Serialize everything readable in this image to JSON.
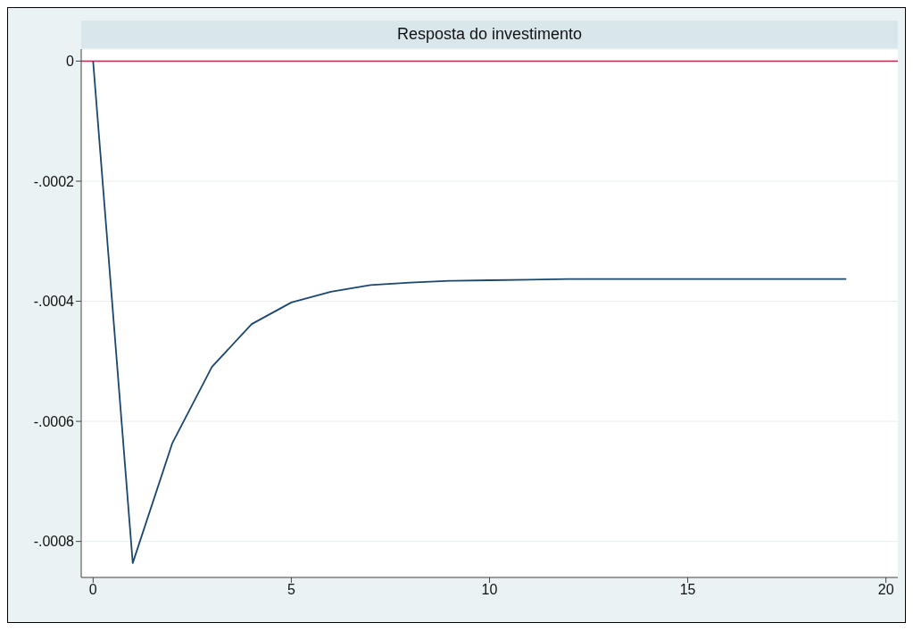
{
  "chart_data": {
    "type": "line",
    "title": "Resposta do investimento",
    "x": [
      0,
      1,
      2,
      3,
      4,
      5,
      6,
      7,
      8,
      9,
      10,
      11,
      12,
      13,
      14,
      15,
      16,
      17,
      18,
      19
    ],
    "series": [
      {
        "color": "#1a476f",
        "values": [
          0,
          -0.000836,
          -0.000636,
          -0.000509,
          -0.000438,
          -0.000402,
          -0.000384,
          -0.000373,
          -0.000369,
          -0.000366,
          -0.000365,
          -0.000364,
          -0.000363,
          -0.000363,
          -0.000363,
          -0.000363,
          -0.000363,
          -0.000363,
          -0.000363,
          -0.000363
        ]
      }
    ],
    "xlim": [
      -0.3,
      20.3
    ],
    "xticks": [
      0,
      5,
      10,
      15,
      20
    ],
    "ylim": [
      -0.00086,
      2e-05
    ],
    "yticks": [
      {
        "value": 0,
        "label": "0"
      },
      {
        "value": -0.0002,
        "label": "-.0002"
      },
      {
        "value": -0.0004,
        "label": "-.0004"
      },
      {
        "value": -0.0006,
        "label": "-.0006"
      },
      {
        "value": -0.0008,
        "label": "-.0008"
      }
    ],
    "ref_lines": [
      {
        "axis": "y",
        "value": 0,
        "color": "#c0284a"
      }
    ],
    "grid": "y",
    "marker": "none",
    "line_style": "solid"
  }
}
